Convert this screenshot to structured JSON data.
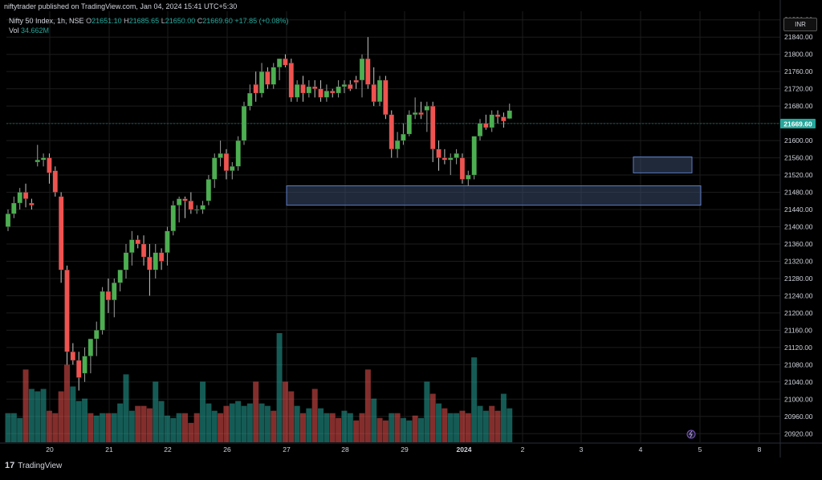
{
  "header": {
    "publisher_line": "niftytrader published on TradingView.com, Jan 04, 2024 15:41 UTC+5:30"
  },
  "legend": {
    "symbol": "Nifty 50 Index, 1h, NSE",
    "open_label": "O",
    "open": "21651.10",
    "high_label": "H",
    "high": "21685.65",
    "low_label": "L",
    "low": "21650.00",
    "close_label": "C",
    "close": "21669.60",
    "change": "+17.85 (+0.08%)",
    "vol_label": "Vol",
    "vol": "34.662M"
  },
  "price_scale": {
    "currency": "INR",
    "last_price": "21669.60"
  },
  "footer": {
    "brand": "TradingView",
    "logo": "17"
  },
  "colors": {
    "up": "#26a69a",
    "up_bright": "#4caf50",
    "down": "#ef5350",
    "vol_up": "#26a69a",
    "vol_down": "#ef5350",
    "grid": "#1c1c1c",
    "zone_fill": "#3a4a6a",
    "zone_stroke": "#5b7bc4"
  },
  "chart_data": {
    "type": "candlestick",
    "title": "Nifty 50 Index, 1h, NSE",
    "y_axis": {
      "min": 20900,
      "max": 21900,
      "ticks": [
        20920,
        20960,
        21000,
        21040,
        21080,
        21120,
        21160,
        21200,
        21240,
        21280,
        21320,
        21360,
        21400,
        21440,
        21480,
        21520,
        21560,
        21600,
        21640,
        21680,
        21720,
        21760,
        21800,
        21840,
        21880
      ]
    },
    "x_axis": {
      "labels": [
        "20",
        "21",
        "22",
        "26",
        "27",
        "28",
        "29",
        "2024",
        "2",
        "3",
        "4",
        "5",
        "8"
      ]
    },
    "zones": [
      {
        "from": 21450,
        "to": 21495
      },
      {
        "from": 21525,
        "to": 21562
      }
    ],
    "candles": [
      [
        21400,
        21440,
        21390,
        21430
      ],
      [
        21430,
        21470,
        21420,
        21455
      ],
      [
        21455,
        21490,
        21440,
        21480
      ],
      [
        21480,
        21500,
        21445,
        21465
      ],
      [
        21455,
        21465,
        21440,
        21450
      ],
      [
        21550,
        21590,
        21540,
        21555
      ],
      [
        21555,
        21570,
        21540,
        21560
      ],
      [
        21560,
        21570,
        21500,
        21525
      ],
      [
        21530,
        21540,
        21470,
        21480
      ],
      [
        21470,
        21480,
        21270,
        21300
      ],
      [
        21300,
        21310,
        21080,
        21110
      ],
      [
        21110,
        21130,
        21080,
        21090
      ],
      [
        21090,
        21110,
        21020,
        21050
      ],
      [
        21060,
        21120,
        21040,
        21100
      ],
      [
        21100,
        21140,
        21060,
        21140
      ],
      [
        21140,
        21180,
        21100,
        21160
      ],
      [
        21160,
        21260,
        21150,
        21250
      ],
      [
        21250,
        21280,
        21200,
        21230
      ],
      [
        21230,
        21280,
        21190,
        21270
      ],
      [
        21270,
        21300,
        21250,
        21300
      ],
      [
        21300,
        21360,
        21280,
        21340
      ],
      [
        21340,
        21390,
        21310,
        21370
      ],
      [
        21370,
        21380,
        21350,
        21360
      ],
      [
        21360,
        21380,
        21310,
        21330
      ],
      [
        21330,
        21360,
        21240,
        21300
      ],
      [
        21300,
        21360,
        21280,
        21340
      ],
      [
        21340,
        21350,
        21300,
        21320
      ],
      [
        21340,
        21400,
        21310,
        21390
      ],
      [
        21390,
        21460,
        21380,
        21450
      ],
      [
        21450,
        21470,
        21410,
        21465
      ],
      [
        21465,
        21470,
        21420,
        21460
      ],
      [
        21460,
        21480,
        21430,
        21440
      ],
      [
        21440,
        21450,
        21430,
        21440
      ],
      [
        21440,
        21460,
        21430,
        21450
      ],
      [
        21460,
        21520,
        21450,
        21510
      ],
      [
        21510,
        21570,
        21490,
        21560
      ],
      [
        21560,
        21600,
        21540,
        21570
      ],
      [
        21570,
        21580,
        21510,
        21530
      ],
      [
        21530,
        21550,
        21510,
        21540
      ],
      [
        21540,
        21610,
        21530,
        21600
      ],
      [
        21600,
        21690,
        21590,
        21680
      ],
      [
        21680,
        21730,
        21670,
        21710
      ],
      [
        21730,
        21760,
        21690,
        21710
      ],
      [
        21710,
        21780,
        21700,
        21760
      ],
      [
        21760,
        21770,
        21720,
        21730
      ],
      [
        21730,
        21780,
        21720,
        21770
      ],
      [
        21770,
        21790,
        21740,
        21790
      ],
      [
        21790,
        21800,
        21770,
        21775
      ],
      [
        21780,
        21790,
        21690,
        21700
      ],
      [
        21700,
        21740,
        21690,
        21730
      ],
      [
        21730,
        21750,
        21690,
        21710
      ],
      [
        21710,
        21740,
        21700,
        21725
      ],
      [
        21725,
        21740,
        21700,
        21720
      ],
      [
        21720,
        21740,
        21690,
        21700
      ],
      [
        21700,
        21730,
        21690,
        21715
      ],
      [
        21715,
        21720,
        21700,
        21710
      ],
      [
        21710,
        21740,
        21700,
        21725
      ],
      [
        21725,
        21740,
        21710,
        21730
      ],
      [
        21730,
        21740,
        21715,
        21720
      ],
      [
        21740,
        21750,
        21720,
        21735
      ],
      [
        21740,
        21800,
        21700,
        21790
      ],
      [
        21790,
        21840,
        21720,
        21730
      ],
      [
        21730,
        21770,
        21680,
        21690
      ],
      [
        21690,
        21750,
        21680,
        21740
      ],
      [
        21740,
        21750,
        21650,
        21660
      ],
      [
        21660,
        21670,
        21560,
        21580
      ],
      [
        21580,
        21620,
        21560,
        21600
      ],
      [
        21600,
        21640,
        21590,
        21615
      ],
      [
        21615,
        21670,
        21610,
        21660
      ],
      [
        21660,
        21700,
        21650,
        21665
      ],
      [
        21665,
        21690,
        21650,
        21660
      ],
      [
        21670,
        21690,
        21620,
        21680
      ],
      [
        21680,
        21690,
        21550,
        21580
      ],
      [
        21580,
        21600,
        21530,
        21560
      ],
      [
        21560,
        21580,
        21545,
        21555
      ],
      [
        21555,
        21570,
        21520,
        21560
      ],
      [
        21560,
        21580,
        21545,
        21570
      ],
      [
        21560,
        21570,
        21500,
        21510
      ],
      [
        21510,
        21530,
        21495,
        21520
      ],
      [
        21520,
        21610,
        21510,
        21610
      ],
      [
        21610,
        21650,
        21600,
        21640
      ],
      [
        21640,
        21660,
        21625,
        21630
      ],
      [
        21630,
        21670,
        21620,
        21660
      ],
      [
        21660,
        21670,
        21640,
        21655
      ],
      [
        21655,
        21665,
        21630,
        21645
      ],
      [
        21651.1,
        21685.65,
        21650.0,
        21669.6
      ]
    ],
    "volume_dir": [
      "u",
      "u",
      "u",
      "d",
      "u",
      "u",
      "u",
      "d",
      "d",
      "d",
      "d",
      "u",
      "u",
      "u",
      "d",
      "u",
      "u",
      "d",
      "u",
      "u",
      "u",
      "u",
      "d",
      "d",
      "d",
      "u",
      "u",
      "u",
      "u",
      "u",
      "d",
      "d",
      "d",
      "u",
      "u",
      "u",
      "d",
      "d",
      "u",
      "u",
      "u",
      "u",
      "d",
      "u",
      "u",
      "d",
      "u",
      "d",
      "d",
      "u",
      "d",
      "u",
      "d",
      "u",
      "u",
      "d",
      "d",
      "u",
      "u",
      "d",
      "d",
      "d",
      "u",
      "d",
      "d",
      "u",
      "d",
      "u",
      "u",
      "d",
      "u",
      "u",
      "d",
      "u",
      "d",
      "u",
      "u",
      "d",
      "d",
      "u",
      "u",
      "u",
      "d",
      "d",
      "u",
      "u"
    ],
    "volume": [
      12,
      12,
      10,
      30,
      22,
      21,
      22,
      13,
      12,
      21,
      32,
      23,
      17,
      18,
      12,
      11,
      12,
      12,
      12,
      16,
      28,
      13,
      15,
      15,
      14,
      25,
      17,
      11,
      10,
      12,
      12,
      8,
      12,
      25,
      16,
      13,
      12,
      15,
      16,
      17,
      15,
      16,
      25,
      16,
      15,
      13,
      45,
      25,
      21,
      15,
      12,
      14,
      22,
      14,
      12,
      12,
      10,
      13,
      12,
      9,
      12,
      30,
      18,
      10,
      9,
      12,
      12,
      10,
      9,
      11,
      10,
      25,
      20,
      16,
      14,
      12,
      12,
      13,
      12,
      35,
      15,
      13,
      15,
      13,
      20,
      14
    ]
  }
}
